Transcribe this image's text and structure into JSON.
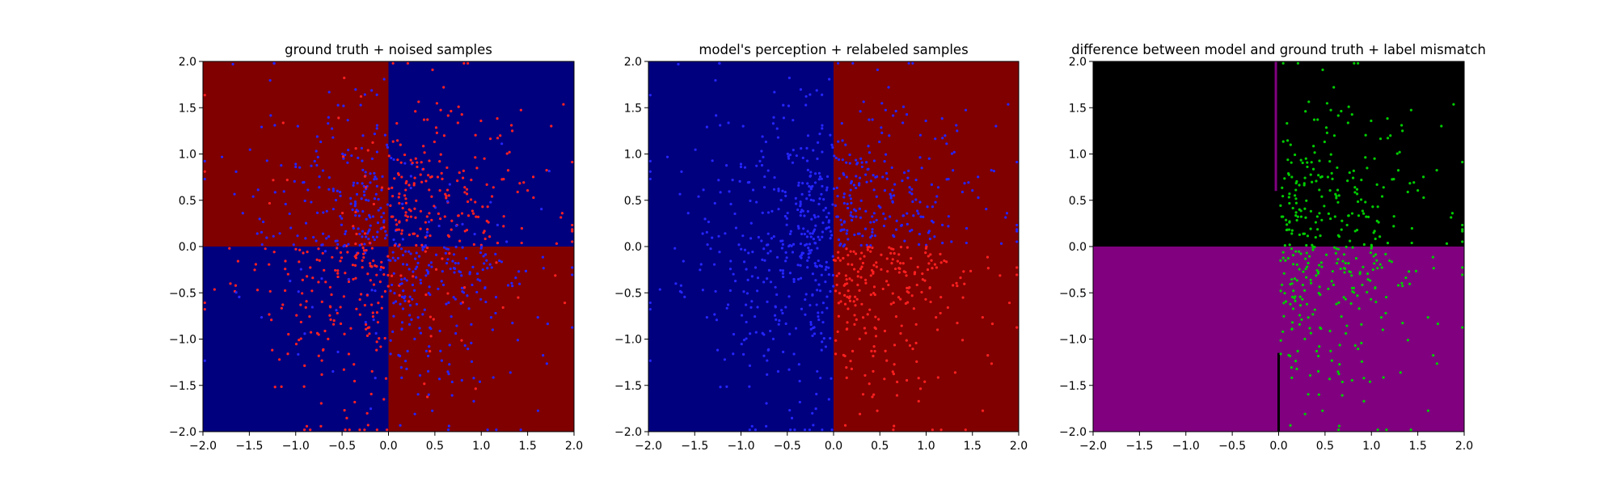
{
  "chart_data": [
    {
      "type": "heatmap",
      "title": "ground truth + noised samples",
      "xlim": [
        -2.0,
        2.0
      ],
      "ylim": [
        -2.0,
        2.0
      ],
      "xticks": [
        "−2.0",
        "−1.5",
        "−1.0",
        "−0.5",
        "0.0",
        "0.5",
        "1.0",
        "1.5",
        "2.0"
      ],
      "yticks": [
        "−2.0",
        "−1.5",
        "−1.0",
        "−0.5",
        "0.0",
        "0.5",
        "1.0",
        "1.5",
        "2.0"
      ],
      "regions": [
        {
          "x": [
            -2.0,
            0.0
          ],
          "y": [
            0.0,
            2.0
          ],
          "color": "#800000"
        },
        {
          "x": [
            0.0,
            2.0
          ],
          "y": [
            0.0,
            2.0
          ],
          "color": "#00007f"
        },
        {
          "x": [
            -2.0,
            0.0
          ],
          "y": [
            -2.0,
            0.0
          ],
          "color": "#00007f"
        },
        {
          "x": [
            0.0,
            2.0
          ],
          "y": [
            -2.0,
            0.0
          ],
          "color": "#800000"
        }
      ],
      "points_description": "random samples; red points dominate quadrants where x*y>0, blue points dominate where x*y<0",
      "point_colors": {
        "class_a": "#ff2020",
        "class_b": "#2525ff"
      },
      "sample_count_per_class": 450,
      "noise_fraction": 0.12
    },
    {
      "type": "heatmap",
      "title": "model's perception + relabeled samples",
      "xlim": [
        -2.0,
        2.0
      ],
      "ylim": [
        -2.0,
        2.0
      ],
      "xticks": [
        "−2.0",
        "−1.5",
        "−1.0",
        "−0.5",
        "0.0",
        "0.5",
        "1.0",
        "1.5",
        "2.0"
      ],
      "yticks": [
        "−2.0",
        "−1.5",
        "−1.0",
        "−0.5",
        "0.0",
        "0.5",
        "1.0",
        "1.5",
        "2.0"
      ],
      "regions": [
        {
          "x": [
            -2.0,
            0.0
          ],
          "y": [
            -2.0,
            2.0
          ],
          "color": "#00007f"
        },
        {
          "x": [
            0.0,
            2.0
          ],
          "y": [
            -2.0,
            2.0
          ],
          "color": "#800000"
        }
      ],
      "points_description": "same samples relabeled by the model: blue where x<0, red where x>0 in lower half; upper half all blue",
      "point_colors": {
        "class_a": "#ff2020",
        "class_b": "#2525ff"
      }
    },
    {
      "type": "heatmap",
      "title": "difference between model and ground truth + label mismatch",
      "xlim": [
        -2.0,
        2.0
      ],
      "ylim": [
        -2.0,
        2.0
      ],
      "xticks": [
        "−2.0",
        "−1.5",
        "−1.0",
        "−0.5",
        "0.0",
        "0.5",
        "1.0",
        "1.5",
        "2.0"
      ],
      "yticks": [
        "−2.0",
        "−1.5",
        "−1.0",
        "−0.5",
        "0.0",
        "0.5",
        "1.0",
        "1.5",
        "2.0"
      ],
      "regions": [
        {
          "x": [
            -2.0,
            2.0
          ],
          "y": [
            0.0,
            2.0
          ],
          "color": "#000000"
        },
        {
          "x": [
            -2.0,
            2.0
          ],
          "y": [
            -2.0,
            0.0
          ],
          "color": "#800080"
        }
      ],
      "points_description": "green mismatch points located in x in [0, 2]",
      "point_colors": {
        "mismatch": "#00cc00"
      },
      "artifacts": [
        {
          "color": "#800080",
          "x": -0.03,
          "y": [
            0.6,
            2.0
          ]
        },
        {
          "color": "#000000",
          "x": 0.0,
          "y": [
            -2.0,
            -1.15
          ]
        }
      ]
    }
  ]
}
